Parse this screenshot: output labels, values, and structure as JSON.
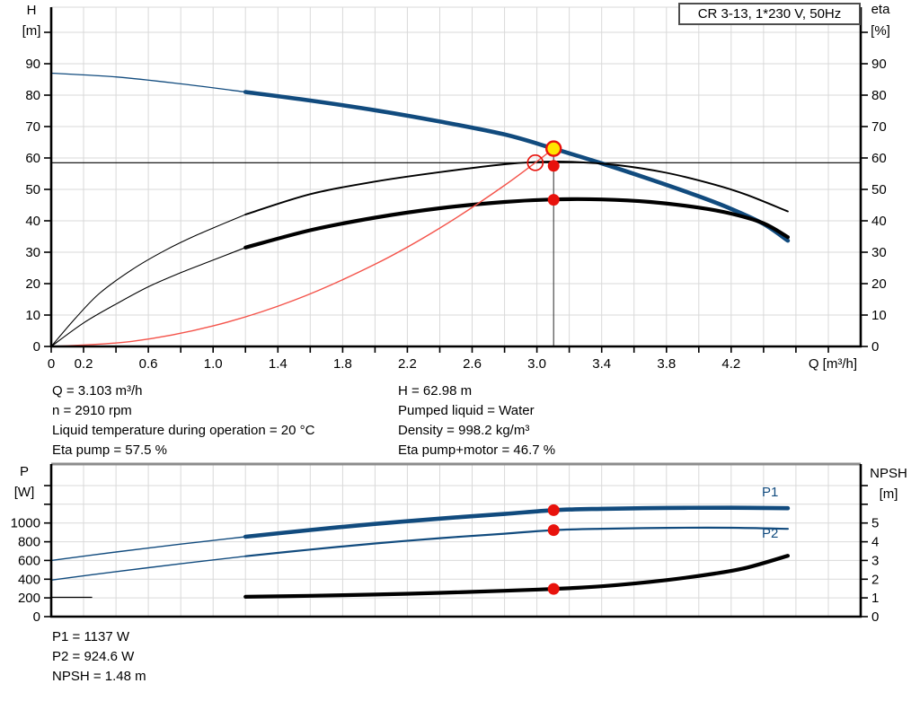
{
  "title_box": {
    "label": "CR 3-13, 1*230 V, 50Hz"
  },
  "colors": {
    "blue": "#114b7e",
    "black": "#000000",
    "red": "#e8120c",
    "yellow": "#ffe400",
    "light_red": "#f4534a",
    "grid": "#d9d9d9",
    "frame_gray": "#8c8c8c",
    "axis": "#000000"
  },
  "axis_labels": {
    "h": "H",
    "h_unit": "[m]",
    "eta": "eta",
    "eta_unit": "[%]",
    "q": "Q [m³/h]",
    "p": "P",
    "p_unit": "[W]",
    "npsh": "NPSH",
    "npsh_unit": "[m]"
  },
  "curve_labels": {
    "p1": "P1",
    "p2": "P2"
  },
  "operating_info": {
    "left": [
      "Q = 3.103 m³/h",
      "n = 2910 rpm",
      "Liquid temperature during operation = 20 °C",
      "Eta pump = 57.5 %"
    ],
    "right": [
      "H = 62.98 m",
      "Pumped liquid = Water",
      "Density = 998.2 kg/m³",
      "Eta pump+motor = 46.7 %"
    ]
  },
  "power_info": {
    "lines": [
      "P1 = 1137 W",
      "P2 = 924.6 W",
      "NPSH = 1.48 m"
    ]
  },
  "chart_data": [
    {
      "id": "qh-eta-chart",
      "type": "line",
      "title": "CR 3-13, 1*230 V, 50Hz",
      "x_axis": {
        "label": "Q [m³/h]",
        "range": [
          0,
          5.0
        ],
        "tick_step": 0.2,
        "show_ticks": true,
        "tick_label_values": [
          0,
          0.2,
          0.6,
          1.0,
          1.4,
          1.8,
          2.2,
          2.6,
          3.0,
          3.4,
          3.8,
          4.2
        ],
        "tick_labels": [
          "0",
          "0.2",
          "0.6",
          "1.0",
          "1.4",
          "1.8",
          "2.2",
          "2.6",
          "3.0",
          "3.4",
          "3.8",
          "4.2"
        ]
      },
      "y_left": {
        "label": "H [m]",
        "range": [
          0,
          108
        ],
        "tick_step": 10,
        "grid_max": 100,
        "label_max": 90
      },
      "y_right": {
        "label": "eta [%]",
        "range": [
          0,
          108
        ],
        "tick_step": 10,
        "grid_max": 100,
        "label_max": 90
      },
      "series": [
        {
          "name": "H low-flow",
          "axis": "left",
          "color": "blue",
          "width": 1.3,
          "points": [
            [
              0,
              87
            ],
            [
              0.4,
              85.8
            ],
            [
              0.8,
              83.6
            ],
            [
              1.2,
              81
            ]
          ]
        },
        {
          "name": "H",
          "axis": "left",
          "color": "blue",
          "width": 4.6,
          "points": [
            [
              1.2,
              81
            ],
            [
              1.6,
              78.3
            ],
            [
              2.0,
              75.2
            ],
            [
              2.4,
              71.6
            ],
            [
              2.8,
              67.5
            ],
            [
              3.103,
              62.98
            ],
            [
              3.4,
              58.3
            ],
            [
              3.7,
              53.2
            ],
            [
              4.0,
              47.8
            ],
            [
              4.2,
              43.8
            ],
            [
              4.4,
              39.0
            ],
            [
              4.55,
              33.7
            ]
          ]
        },
        {
          "name": "Eta pump low-flow",
          "axis": "right",
          "color": "black",
          "width": 1.1,
          "points": [
            [
              0,
              0
            ],
            [
              0.15,
              9
            ],
            [
              0.3,
              17
            ],
            [
              0.5,
              24.5
            ],
            [
              0.7,
              30.5
            ],
            [
              0.9,
              35.5
            ],
            [
              1.2,
              42
            ]
          ]
        },
        {
          "name": "Eta pump",
          "axis": "right",
          "color": "black",
          "width": 1.9,
          "points": [
            [
              1.2,
              42
            ],
            [
              1.6,
              48.5
            ],
            [
              2.0,
              52.5
            ],
            [
              2.4,
              55.5
            ],
            [
              2.8,
              58
            ],
            [
              3.0,
              58.7
            ],
            [
              3.2,
              58.8
            ],
            [
              3.5,
              57.7
            ],
            [
              3.8,
              55.3
            ],
            [
              4.1,
              51.5
            ],
            [
              4.3,
              48.2
            ],
            [
              4.55,
              43
            ]
          ]
        },
        {
          "name": "Eta pump+motor low-flow",
          "axis": "right",
          "color": "black",
          "width": 1.1,
          "points": [
            [
              0,
              0
            ],
            [
              0.2,
              7.5
            ],
            [
              0.4,
              13.5
            ],
            [
              0.6,
              19
            ],
            [
              0.8,
              23.5
            ],
            [
              1.0,
              27.5
            ],
            [
              1.2,
              31.5
            ]
          ]
        },
        {
          "name": "Eta pump+motor",
          "axis": "right",
          "color": "black",
          "width": 4.2,
          "points": [
            [
              1.2,
              31.5
            ],
            [
              1.6,
              37
            ],
            [
              2.0,
              41
            ],
            [
              2.4,
              44
            ],
            [
              2.8,
              46
            ],
            [
              3.1,
              46.8
            ],
            [
              3.4,
              46.8
            ],
            [
              3.7,
              46
            ],
            [
              4.0,
              44.2
            ],
            [
              4.2,
              42.3
            ],
            [
              4.4,
              39.2
            ],
            [
              4.55,
              34.8
            ]
          ]
        },
        {
          "name": "System curve",
          "axis": "left",
          "color": "light_red",
          "width": 1.4,
          "points": [
            [
              0,
              0
            ],
            [
              0.5,
              1.64
            ],
            [
              1.0,
              6.54
            ],
            [
              1.5,
              14.72
            ],
            [
              2.0,
              26.17
            ],
            [
              2.4,
              37.69
            ],
            [
              2.8,
              51.3
            ],
            [
              3.103,
              62.98
            ]
          ]
        }
      ],
      "ref_lines": [
        {
          "dir": "h",
          "axis": "left",
          "value": 58.5,
          "color": "black",
          "width": 1.2
        },
        {
          "dir": "v",
          "axis": "left",
          "q": 3.103,
          "from_value": 62.98,
          "color": "#3c3c3c",
          "width": 1.1
        }
      ],
      "markers": [
        {
          "shape": "ring",
          "name": "requested-duty-point",
          "axis": "left",
          "q": 2.99,
          "value": 58.5,
          "r": 8.5,
          "stroke": "red",
          "stroke_width": 1.7,
          "fill": "none"
        },
        {
          "shape": "dot",
          "name": "duty-point",
          "axis": "left",
          "q": 3.103,
          "value": 62.98,
          "r": 8,
          "stroke": "red",
          "stroke_width": 2.4,
          "fill": "yellow"
        },
        {
          "shape": "dot",
          "name": "eta-pump-point",
          "axis": "right",
          "q": 3.103,
          "value": 57.5,
          "r": 6.5,
          "stroke": "none",
          "stroke_width": 0,
          "fill": "red"
        },
        {
          "shape": "dot",
          "name": "eta-pump-motor-point",
          "axis": "right",
          "q": 3.103,
          "value": 46.7,
          "r": 6.5,
          "stroke": "none",
          "stroke_width": 0,
          "fill": "red"
        }
      ]
    },
    {
      "id": "power-npsh-chart",
      "type": "line",
      "title": "",
      "x_axis": {
        "label": "",
        "range": [
          0,
          5.0
        ],
        "tick_step": 0.2,
        "show_ticks": false,
        "tick_label_values": [],
        "tick_labels": []
      },
      "y_left": {
        "label": "P [W]",
        "range": [
          0,
          1630
        ],
        "tick_step": 200,
        "grid_max": 1400,
        "label_max": 1000
      },
      "y_right": {
        "label": "NPSH [m]",
        "range": [
          0,
          8.15
        ],
        "tick_step": 1,
        "grid_max": 7,
        "label_max": 5
      },
      "series": [
        {
          "name": "P1 low-flow",
          "axis": "left",
          "color": "blue",
          "width": 1.4,
          "points": [
            [
              0,
              600
            ],
            [
              0.4,
              690
            ],
            [
              0.8,
              775
            ],
            [
              1.2,
              853
            ]
          ]
        },
        {
          "name": "P1",
          "axis": "left",
          "color": "blue",
          "width": 4.6,
          "points": [
            [
              1.2,
              853
            ],
            [
              1.6,
              925
            ],
            [
              2.0,
              990
            ],
            [
              2.4,
              1047
            ],
            [
              2.8,
              1097
            ],
            [
              3.103,
              1137
            ],
            [
              3.4,
              1152
            ],
            [
              3.8,
              1161
            ],
            [
              4.2,
              1163
            ],
            [
              4.55,
              1158
            ]
          ]
        },
        {
          "name": "P2 low-flow",
          "axis": "left",
          "color": "blue",
          "width": 1.4,
          "points": [
            [
              0,
              390
            ],
            [
              0.4,
              480
            ],
            [
              0.8,
              565
            ],
            [
              1.2,
              645
            ]
          ]
        },
        {
          "name": "P2",
          "axis": "left",
          "color": "blue",
          "width": 2.2,
          "points": [
            [
              1.2,
              645
            ],
            [
              1.6,
              716
            ],
            [
              2.0,
              781
            ],
            [
              2.4,
              838
            ],
            [
              2.8,
              886
            ],
            [
              3.103,
              924.6
            ],
            [
              3.4,
              939
            ],
            [
              3.8,
              948
            ],
            [
              4.2,
              949
            ],
            [
              4.55,
              938
            ]
          ]
        },
        {
          "name": "NPSH low-flow",
          "axis": "right",
          "color": "black",
          "width": 1.2,
          "points": [
            [
              0,
              1.03
            ],
            [
              0.25,
              1.03
            ]
          ]
        },
        {
          "name": "NPSH",
          "axis": "right",
          "color": "black",
          "width": 4.2,
          "points": [
            [
              1.2,
              1.06
            ],
            [
              1.6,
              1.11
            ],
            [
              2.0,
              1.18
            ],
            [
              2.4,
              1.27
            ],
            [
              2.8,
              1.38
            ],
            [
              3.103,
              1.48
            ],
            [
              3.4,
              1.62
            ],
            [
              3.8,
              1.95
            ],
            [
              4.1,
              2.3
            ],
            [
              4.3,
              2.62
            ],
            [
              4.55,
              3.25
            ]
          ]
        }
      ],
      "ref_lines": [],
      "markers": [
        {
          "shape": "dot",
          "name": "p1-point",
          "axis": "left",
          "q": 3.103,
          "value": 1137,
          "r": 6.5,
          "stroke": "none",
          "stroke_width": 0,
          "fill": "red"
        },
        {
          "shape": "dot",
          "name": "p2-point",
          "axis": "left",
          "q": 3.103,
          "value": 924.6,
          "r": 6.5,
          "stroke": "none",
          "stroke_width": 0,
          "fill": "red"
        },
        {
          "shape": "dot",
          "name": "npsh-point",
          "axis": "right",
          "q": 3.103,
          "value": 1.48,
          "r": 6.5,
          "stroke": "none",
          "stroke_width": 0,
          "fill": "red"
        }
      ]
    }
  ]
}
